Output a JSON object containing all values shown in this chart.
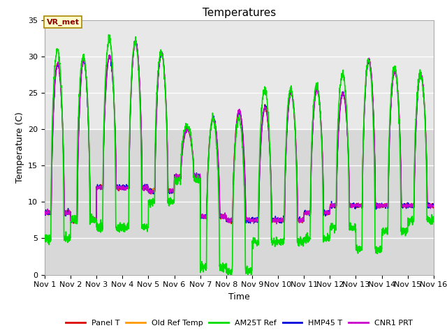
{
  "title": "Temperatures",
  "xlabel": "Time",
  "ylabel": "Temperature (C)",
  "ylim": [
    0,
    35
  ],
  "xlim": [
    0,
    15
  ],
  "xtick_labels": [
    "Nov 1",
    "Nov 2",
    "Nov 3",
    "Nov 4",
    "Nov 5",
    "Nov 6",
    "Nov 7",
    "Nov 8",
    "Nov 9",
    "Nov 10",
    "Nov 11",
    "Nov 12",
    "Nov 13",
    "Nov 14",
    "Nov 15",
    "Nov 16"
  ],
  "ytick_values": [
    0,
    5,
    10,
    15,
    20,
    25,
    30,
    35
  ],
  "series_colors": {
    "Panel T": "#dd0000",
    "Old Ref Temp": "#ff9900",
    "AM25T Ref": "#00dd00",
    "HMP45 T": "#0000dd",
    "CNR1 PRT": "#cc00cc"
  },
  "annotation_text": "VR_met",
  "bg_color_inner_dark": "#d8d8d8",
  "bg_color_inner_light": "#e8e8e8",
  "bg_color_outer": "#ffffff",
  "grid_color": "#ffffff",
  "band_boundary": 20,
  "title_fontsize": 11,
  "label_fontsize": 9,
  "tick_fontsize": 8,
  "day_peaks_ref": [
    29.0,
    29.5,
    30.0,
    32.0,
    30.5,
    20.0,
    21.5,
    22.5,
    23.0,
    25.0,
    25.5,
    25.0,
    29.5,
    28.0,
    27.5
  ],
  "day_mins_ref": [
    8.5,
    7.5,
    12.0,
    12.0,
    11.5,
    13.5,
    8.0,
    7.5,
    7.5,
    7.5,
    8.5,
    9.5,
    9.5,
    9.5,
    9.5
  ],
  "day_peaks_am25": [
    31.0,
    30.0,
    32.5,
    32.0,
    30.5,
    20.5,
    21.5,
    21.5,
    25.5,
    25.5,
    26.0,
    27.5,
    29.5,
    28.5,
    27.5
  ],
  "day_mins_am25": [
    5.0,
    7.5,
    6.5,
    6.5,
    10.0,
    13.0,
    1.0,
    0.5,
    4.5,
    4.5,
    5.0,
    6.5,
    3.5,
    6.0,
    7.5
  ],
  "peak_time": 0.58,
  "min_time": 0.25
}
